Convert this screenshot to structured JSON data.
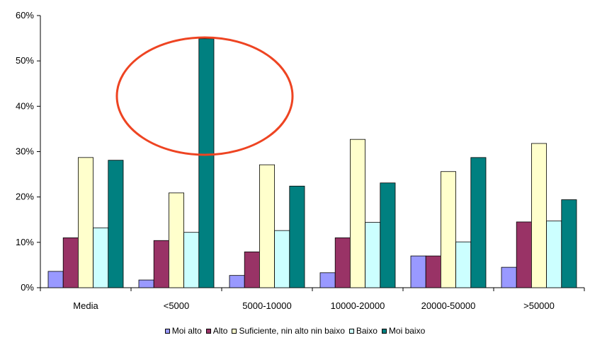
{
  "chart_data": {
    "type": "bar",
    "categories": [
      "Media",
      "<5000",
      "5000-10000",
      "10000-20000",
      "20000-50000",
      ">50000"
    ],
    "series": [
      {
        "name": "Moi alto",
        "color": "#9999ff",
        "values": [
          3.6,
          1.7,
          2.7,
          3.3,
          7.0,
          4.5
        ]
      },
      {
        "name": "Alto",
        "color": "#993366",
        "values": [
          11.0,
          10.4,
          7.9,
          11.0,
          7.0,
          14.5
        ]
      },
      {
        "name": "Suficiente, nin alto nin baixo",
        "color": "#ffffcc",
        "values": [
          28.7,
          20.9,
          27.1,
          32.7,
          25.6,
          31.8
        ]
      },
      {
        "name": "Baixo",
        "color": "#ccffff",
        "values": [
          13.2,
          12.2,
          12.6,
          14.4,
          10.1,
          14.7
        ]
      },
      {
        "name": "Moi baixo",
        "color": "#008080",
        "values": [
          28.1,
          54.9,
          22.4,
          23.1,
          28.7,
          19.4
        ]
      }
    ],
    "ylim": [
      0,
      60
    ],
    "yticks": [
      0,
      10,
      20,
      30,
      40,
      50,
      60
    ],
    "ytick_labels": [
      "0%",
      "10%",
      "20%",
      "30%",
      "40%",
      "50%",
      "60%"
    ],
    "grid": false,
    "legend_position": "bottom",
    "annotations": [
      {
        "type": "ellipse",
        "color": "#ee4422",
        "target_category": "<5000"
      }
    ]
  }
}
